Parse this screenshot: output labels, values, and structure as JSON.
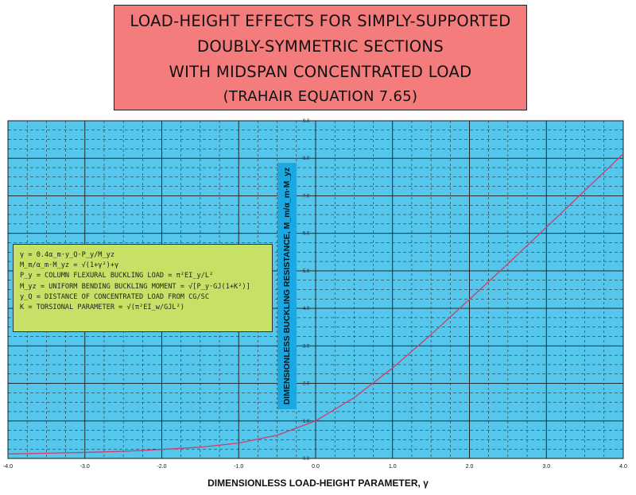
{
  "title": {
    "line1": "LOAD-HEIGHT EFFECTS FOR SIMPLY-SUPPORTED",
    "line2": "DOUBLY-SYMMETRIC SECTIONS",
    "line3": "WITH MIDSPAN CONCENTRATED LOAD",
    "line4": "(TRAHAIR EQUATION 7.65)"
  },
  "colors": {
    "title_bg": "#f47c7c",
    "plot_bg": "#55c6ec",
    "legend_bg": "#c6e165",
    "ylabel_bg": "#1ba7e0",
    "curve": "#d23c6a"
  },
  "legend": {
    "lines": [
      "γ = 0.4α_m·y_Q·P_y/M_yz",
      "M_m/α_m·M_yz = √(1+γ²)+γ",
      "P_y = COLUMN FLEXURAL BUCKLING LOAD = π²EI_y/L²",
      "M_yz = UNIFORM BENDING BUCKLING MOMENT = √[P_y·GJ(1+K²)]",
      "y_Q = DISTANCE OF CONCENTRATED LOAD FROM CG/SC",
      "K = TORSIONAL PARAMETER = √(π²EI_w/GJL²)"
    ]
  },
  "chart_data": {
    "type": "line",
    "title": "LOAD-HEIGHT EFFECTS FOR SIMPLY-SUPPORTED DOUBLY-SYMMETRIC SECTIONS WITH MIDSPAN CONCENTRATED LOAD (TRAHAIR EQUATION 7.65)",
    "xlabel": "DIMENSIONLESS LOAD-HEIGHT PARAMETER, γ",
    "ylabel": "DIMENSIONLESS BUCKLING RESISTANCE, M_m/α_m·M_yz",
    "xlim": [
      -4.0,
      4.0
    ],
    "ylim": [
      0.0,
      9.0
    ],
    "x_ticks": [
      "-4.0",
      "-3.0",
      "-2.0",
      "-1.0",
      "0.0",
      "1.0",
      "2.0",
      "3.0",
      "4.0"
    ],
    "y_ticks": [
      "0.0",
      "1.0",
      "2.0",
      "3.0",
      "4.0",
      "5.0",
      "6.0",
      "7.0",
      "8.0",
      "9.0"
    ],
    "grid": "on",
    "series": [
      {
        "x": [
          -4.0,
          -3.5,
          -3.0,
          -2.5,
          -2.0,
          -1.5,
          -1.0,
          -0.5,
          0.0,
          0.5,
          1.0,
          1.5,
          2.0,
          2.5,
          3.0,
          3.5,
          4.0
        ],
        "values": [
          0.12,
          0.14,
          0.16,
          0.19,
          0.24,
          0.3,
          0.41,
          0.62,
          1.0,
          1.62,
          2.41,
          3.3,
          4.24,
          5.19,
          6.16,
          7.14,
          8.12
        ]
      }
    ]
  }
}
